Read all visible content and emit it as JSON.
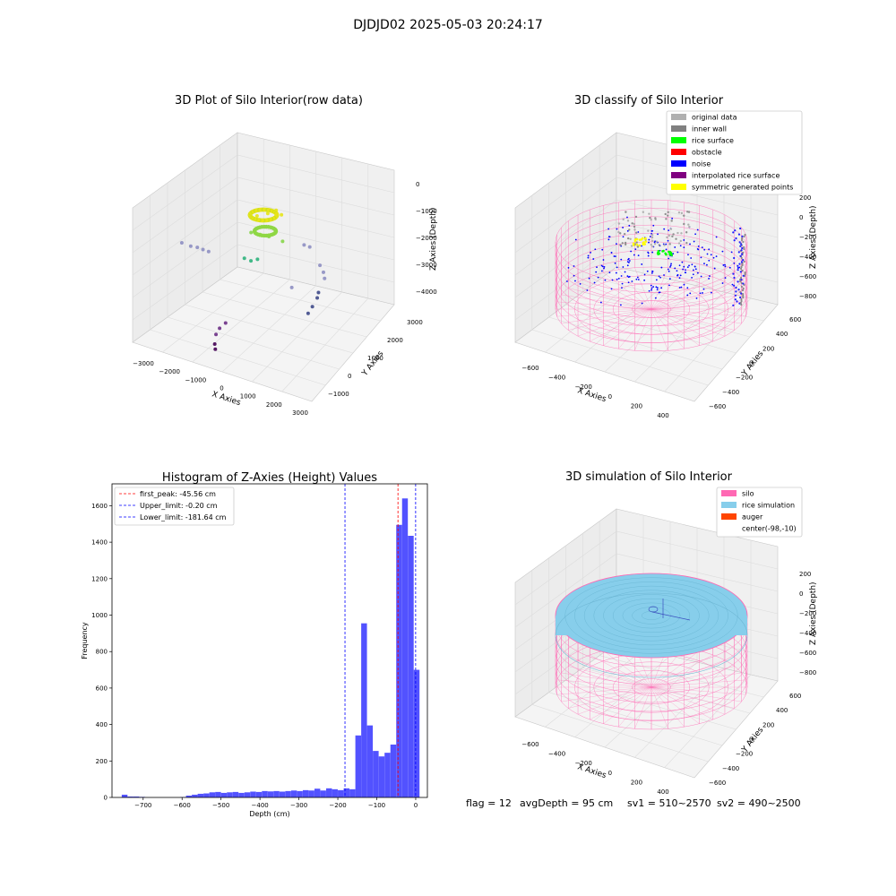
{
  "figure": {
    "suptitle": "DJDJD02 2025-05-03 20:24:17",
    "status_line": {
      "flag": "flag = 12",
      "avg_depth": "avgDepth = 95 cm",
      "sv1": "sv1 = 510~2570",
      "sv2": "sv2 = 490~2500"
    }
  },
  "chart_data": [
    {
      "type": "scatter",
      "title": "3D Plot of Silo Interior(row data)",
      "xlabel": "X Axies",
      "ylabel": "Y Axies",
      "zlabel": "Z Axies (Depth)",
      "x_ticks": [
        "−3000",
        "−2000",
        "−1000",
        "0",
        "1000",
        "2000",
        "3000"
      ],
      "y_ticks": [
        "−1000",
        "0",
        "1000",
        "2000",
        "3000"
      ],
      "z_ticks": [
        "−4000",
        "−3000",
        "−2000",
        "−1000",
        "0"
      ],
      "xlim": [
        -3300,
        3300
      ],
      "ylim": [
        -1600,
        3600
      ],
      "zlim": [
        -4600,
        200
      ],
      "colormap": "viridis",
      "grid": true,
      "points": [
        {
          "x": -2900,
          "y": 0,
          "z": -1300,
          "color": "#8e8fc2"
        },
        {
          "x": -2600,
          "y": 100,
          "z": -1400,
          "color": "#8e8fc2"
        },
        {
          "x": -2400,
          "y": 200,
          "z": -1450,
          "color": "#8e8fc2"
        },
        {
          "x": -2200,
          "y": 250,
          "z": -1500,
          "color": "#8e8fc2"
        },
        {
          "x": -2000,
          "y": 300,
          "z": -1550,
          "color": "#8e8fc2"
        },
        {
          "x": 800,
          "y": 1900,
          "z": -1500,
          "color": "#8e8fc2"
        },
        {
          "x": 1000,
          "y": 1950,
          "z": -1550,
          "color": "#8e8fc2"
        },
        {
          "x": 2000,
          "y": 1200,
          "z": -1500,
          "color": "#8e8fc2"
        },
        {
          "x": 2300,
          "y": 1000,
          "z": -1550,
          "color": "#8e8fc2"
        },
        {
          "x": 2500,
          "y": 800,
          "z": -1600,
          "color": "#8e8fc2"
        },
        {
          "x": 2700,
          "y": 200,
          "z": -1700,
          "color": "#3f4a8a"
        },
        {
          "x": 2800,
          "y": 0,
          "z": -1750,
          "color": "#3f4a8a"
        },
        {
          "x": 2900,
          "y": -400,
          "z": -1800,
          "color": "#3f4a8a"
        },
        {
          "x": 2950,
          "y": -700,
          "z": -1850,
          "color": "#3f4a8a"
        },
        {
          "x": 1500,
          "y": 300,
          "z": -1900,
          "color": "#8e8fc2"
        },
        {
          "x": -600,
          "y": -600,
          "z": -3200,
          "color": "#6b2f85"
        },
        {
          "x": -700,
          "y": -800,
          "z": -3300,
          "color": "#6b2f85"
        },
        {
          "x": -700,
          "y": -1000,
          "z": -3400,
          "color": "#6b2f85"
        },
        {
          "x": -600,
          "y": -1200,
          "z": -3600,
          "color": "#440154"
        },
        {
          "x": -500,
          "y": -1300,
          "z": -3700,
          "color": "#440154"
        },
        {
          "x": -800,
          "y": 1400,
          "z": -600,
          "color": "#e6e419"
        },
        {
          "x": -500,
          "y": 1600,
          "z": -550,
          "color": "#e6e419"
        },
        {
          "x": -300,
          "y": 1800,
          "z": -500,
          "color": "#e6e419"
        },
        {
          "x": 0,
          "y": 1700,
          "z": -520,
          "color": "#e6e419"
        },
        {
          "x": -900,
          "y": 1200,
          "z": -1100,
          "color": "#86d549"
        },
        {
          "x": -600,
          "y": 1300,
          "z": -1150,
          "color": "#86d549"
        },
        {
          "x": -300,
          "y": 1400,
          "z": -1200,
          "color": "#86d549"
        },
        {
          "x": -800,
          "y": 700,
          "z": -1700,
          "color": "#2eb37c"
        },
        {
          "x": -600,
          "y": 800,
          "z": -1800,
          "color": "#2eb37c"
        },
        {
          "x": -400,
          "y": 900,
          "z": -1750,
          "color": "#2eb37c"
        },
        {
          "x": 200,
          "y": 1500,
          "z": -1300,
          "color": "#86d549"
        }
      ]
    },
    {
      "type": "scatter",
      "title": "3D classify of Silo Interior",
      "xlabel": "X Axies",
      "ylabel": "Y Axies",
      "zlabel": "Z Axies (Depth)",
      "x_ticks": [
        "−600",
        "−400",
        "−200",
        "0",
        "200",
        "400"
      ],
      "y_ticks": [
        "−600",
        "−400",
        "−200",
        "0",
        "200",
        "400",
        "600"
      ],
      "z_ticks": [
        "−800",
        "−600",
        "−400",
        "−200",
        "0",
        "200"
      ],
      "legend_position": "top-right",
      "grid": true,
      "legend": [
        {
          "label": "original data",
          "color": "#b0b0b0"
        },
        {
          "label": "inner wall",
          "color": "#808080"
        },
        {
          "label": "rice surface",
          "color": "#00ff00"
        },
        {
          "label": "obstacle",
          "color": "#ff0000"
        },
        {
          "label": "noise",
          "color": "#0000ff"
        },
        {
          "label": "interpolated rice surface",
          "color": "#800080"
        },
        {
          "label": "symmetric generated points",
          "color": "#ffff00"
        }
      ]
    },
    {
      "type": "bar",
      "title": "Histogram of Z-Axies (Height) Values",
      "xlabel": "Depth (cm)",
      "ylabel": "Frequency",
      "xlim": [
        -780,
        30
      ],
      "ylim": [
        0,
        1720
      ],
      "x_ticks": [
        -700,
        -600,
        -500,
        -400,
        -300,
        -200,
        -100,
        0
      ],
      "x_tick_labels": [
        "−700",
        "−600",
        "−500",
        "−400",
        "−300",
        "−200",
        "−100",
        "0"
      ],
      "y_ticks": [
        0,
        200,
        400,
        600,
        800,
        1000,
        1200,
        1400,
        1600
      ],
      "bar_color": "#0000ff",
      "bin_width": 14.8,
      "bins": [
        {
          "x0": -755,
          "value": 15
        },
        {
          "x0": -740,
          "value": 5
        },
        {
          "x0": -725,
          "value": 5
        },
        {
          "x0": -710,
          "value": 3
        },
        {
          "x0": -695,
          "value": 0
        },
        {
          "x0": -680,
          "value": 0
        },
        {
          "x0": -665,
          "value": 0
        },
        {
          "x0": -650,
          "value": 0
        },
        {
          "x0": -635,
          "value": 0
        },
        {
          "x0": -620,
          "value": 0
        },
        {
          "x0": -605,
          "value": 2
        },
        {
          "x0": -590,
          "value": 10
        },
        {
          "x0": -575,
          "value": 15
        },
        {
          "x0": -560,
          "value": 20
        },
        {
          "x0": -545,
          "value": 22
        },
        {
          "x0": -530,
          "value": 28
        },
        {
          "x0": -515,
          "value": 30
        },
        {
          "x0": -500,
          "value": 25
        },
        {
          "x0": -485,
          "value": 28
        },
        {
          "x0": -470,
          "value": 30
        },
        {
          "x0": -455,
          "value": 25
        },
        {
          "x0": -440,
          "value": 28
        },
        {
          "x0": -425,
          "value": 32
        },
        {
          "x0": -410,
          "value": 30
        },
        {
          "x0": -395,
          "value": 35
        },
        {
          "x0": -380,
          "value": 33
        },
        {
          "x0": -365,
          "value": 35
        },
        {
          "x0": -350,
          "value": 32
        },
        {
          "x0": -335,
          "value": 35
        },
        {
          "x0": -320,
          "value": 38
        },
        {
          "x0": -305,
          "value": 35
        },
        {
          "x0": -290,
          "value": 40
        },
        {
          "x0": -275,
          "value": 38
        },
        {
          "x0": -260,
          "value": 48
        },
        {
          "x0": -245,
          "value": 38
        },
        {
          "x0": -230,
          "value": 50
        },
        {
          "x0": -215,
          "value": 45
        },
        {
          "x0": -200,
          "value": 40
        },
        {
          "x0": -185,
          "value": 50
        },
        {
          "x0": -170,
          "value": 45
        },
        {
          "x0": -155,
          "value": 340
        },
        {
          "x0": -140,
          "value": 955
        },
        {
          "x0": -125,
          "value": 395
        },
        {
          "x0": -110,
          "value": 255
        },
        {
          "x0": -95,
          "value": 225
        },
        {
          "x0": -80,
          "value": 245
        },
        {
          "x0": -65,
          "value": 290
        },
        {
          "x0": -50,
          "value": 1495
        },
        {
          "x0": -35,
          "value": 1640
        },
        {
          "x0": -20,
          "value": 1435
        },
        {
          "x0": -5,
          "value": 700
        }
      ],
      "reference_lines": [
        {
          "label": "first_peak: -45.56 cm",
          "x": -45.56,
          "color": "#ff0000"
        },
        {
          "label": "Upper_limit: -0.20 cm",
          "x": -0.2,
          "color": "#0000ff"
        },
        {
          "label": "Lower_limit: -181.64 cm",
          "x": -181.64,
          "color": "#0000ff"
        }
      ],
      "legend_position": "top-left",
      "grid": false
    },
    {
      "type": "surface",
      "title": "3D simulation of Silo Interior",
      "xlabel": "X Axies",
      "ylabel": "Y Axies",
      "zlabel": "Z Axies (Depth)",
      "x_ticks": [
        "−600",
        "−400",
        "−200",
        "0",
        "200",
        "400"
      ],
      "y_ticks": [
        "−600",
        "−400",
        "−200",
        "0",
        "200",
        "400",
        "600"
      ],
      "z_ticks": [
        "−800",
        "−600",
        "−400",
        "−200",
        "0",
        "200"
      ],
      "legend_position": "top-right",
      "grid": true,
      "legend": [
        {
          "label": "silo",
          "color": "#ff69b4"
        },
        {
          "label": "rice simulation",
          "color": "#87ceeb"
        },
        {
          "label": "auger",
          "color": "#ff4500"
        },
        {
          "label": "center(-98,-10)",
          "color": ""
        }
      ]
    }
  ]
}
